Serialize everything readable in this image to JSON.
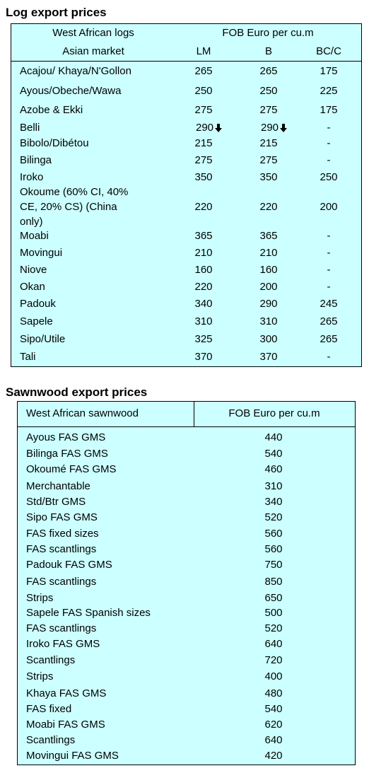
{
  "log": {
    "title": "Log export prices",
    "header_left_1": "West African logs",
    "header_left_2": "Asian market",
    "header_right": "FOB Euro per cu.m",
    "columns": [
      "LM",
      "B",
      "BC/C"
    ],
    "rows": [
      {
        "name": "Acajou/ Khaya/N'Gollon",
        "lm": "265",
        "b": "265",
        "bc": "175"
      },
      {
        "name": "Ayous/Obeche/Wawa",
        "lm": "250",
        "b": "250",
        "bc": "225"
      },
      {
        "name": "Azobe & Ekki",
        "lm": "275",
        "b": "275",
        "bc": "175"
      },
      {
        "name": "Belli",
        "lm": "290",
        "b": "290",
        "bc": "-"
      },
      {
        "name": "Bibolo/Dibétou",
        "lm": "215",
        "b": "215",
        "bc": "-"
      },
      {
        "name": "Bilinga",
        "lm": "275",
        "b": "275",
        "bc": "-"
      },
      {
        "name": "Iroko",
        "lm": "350",
        "b": "350",
        "bc": "250"
      },
      {
        "name_lines": [
          "Okoume (60% CI, 40%",
          "CE, 20% CS) (China",
          "only)"
        ],
        "lm": "220",
        "b": "220",
        "bc": "200"
      },
      {
        "name": "Moabi",
        "lm": "365",
        "b": "365",
        "bc": "-"
      },
      {
        "name": "Movingui",
        "lm": "210",
        "b": "210",
        "bc": "-"
      },
      {
        "name": "Niove",
        "lm": "160",
        "b": "160",
        "bc": "-"
      },
      {
        "name": "Okan",
        "lm": "220",
        "b": "200",
        "bc": "-"
      },
      {
        "name": "Padouk",
        "lm": "340",
        "b": "290",
        "bc": "245"
      },
      {
        "name": "Sapele",
        "lm": "310",
        "b": "310",
        "bc": "265"
      },
      {
        "name": "Sipo/Utile",
        "lm": "325",
        "b": "300",
        "bc": "265"
      },
      {
        "name": "Tali",
        "lm": "370",
        "b": "370",
        "bc": "-"
      }
    ],
    "down_arrow_icon": "down-arrow-icon"
  },
  "sawn": {
    "title": "Sawnwood export prices",
    "header_left": "West African sawnwood",
    "header_right": "FOB Euro per cu.m",
    "rows": [
      {
        "name": "Ayous FAS GMS",
        "value": "440"
      },
      {
        "name": "Bilinga FAS GMS",
        "value": "540"
      },
      {
        "name": "Okoumé FAS GMS",
        "value": "460"
      },
      {
        "name": "Merchantable",
        "value": "310"
      },
      {
        "name": "Std/Btr GMS",
        "value": "340"
      },
      {
        "name": "Sipo FAS GMS",
        "value": "520"
      },
      {
        "name": "FAS fixed sizes",
        "value": "560"
      },
      {
        "name": "FAS scantlings",
        "value": "560"
      },
      {
        "name": "Padouk FAS GMS",
        "value": "750"
      },
      {
        "name": "FAS scantlings",
        "value": "850"
      },
      {
        "name": "Strips",
        "value": "650"
      },
      {
        "name": "Sapele FAS Spanish sizes",
        "value": "500"
      },
      {
        "name": "FAS scantlings",
        "value": "520"
      },
      {
        "name": "Iroko FAS GMS",
        "value": "640"
      },
      {
        "name": "Scantlings",
        "value": "720"
      },
      {
        "name": "Strips",
        "value": "400"
      },
      {
        "name": "Khaya FAS GMS",
        "value": "480"
      },
      {
        "name": "FAS fixed",
        "value": "540"
      },
      {
        "name": "Moabi FAS GMS",
        "value": "620"
      },
      {
        "name": "Scantlings",
        "value": "640"
      },
      {
        "name": "Movingui FAS GMS",
        "value": "420"
      }
    ]
  }
}
